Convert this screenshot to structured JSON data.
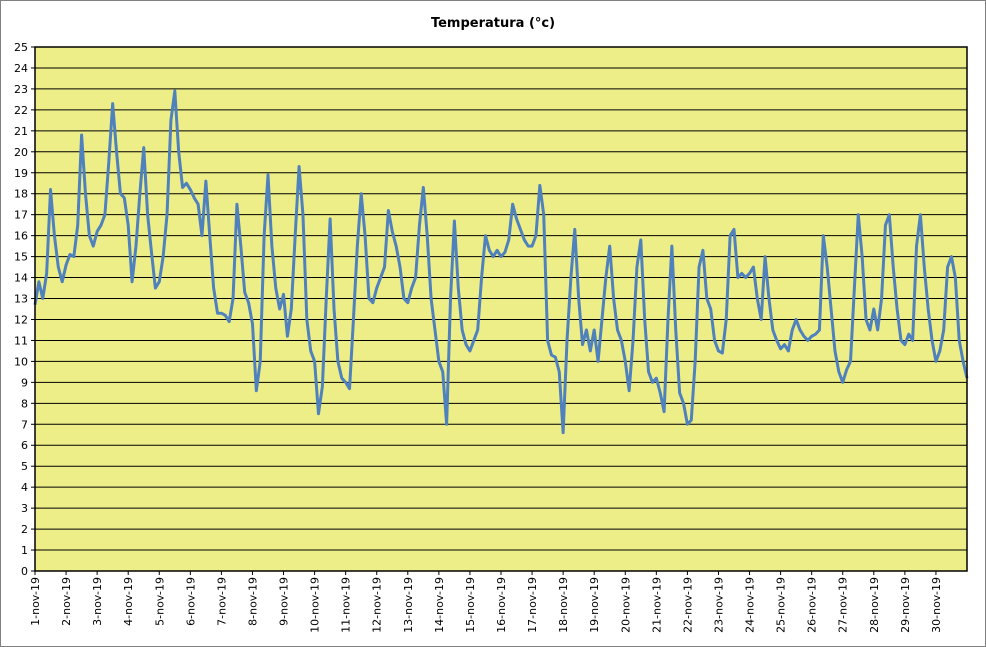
{
  "chart_data": {
    "type": "line",
    "title": "Temperatura (°c)",
    "xlabel": "",
    "ylabel": "",
    "ylim": [
      0,
      25
    ],
    "y_ticks": [
      0,
      1,
      2,
      3,
      4,
      5,
      6,
      7,
      8,
      9,
      10,
      11,
      12,
      13,
      14,
      15,
      16,
      17,
      18,
      19,
      20,
      21,
      22,
      23,
      24,
      25
    ],
    "x_ticks": [
      "1-nov-19",
      "2-nov-19",
      "3-nov-19",
      "4-nov-19",
      "5-nov-19",
      "6-nov-19",
      "7-nov-19",
      "8-nov-19",
      "9-nov-19",
      "10-nov-19",
      "11-nov-19",
      "12-nov-19",
      "13-nov-19",
      "14-nov-19",
      "15-nov-19",
      "16-nov-19",
      "17-nov-19",
      "18-nov-19",
      "19-nov-19",
      "20-nov-19",
      "21-nov-19",
      "22-nov-19",
      "23-nov-19",
      "24-nov-19",
      "25-nov-19",
      "26-nov-19",
      "27-nov-19",
      "28-nov-19",
      "29-nov-19",
      "30-nov-19"
    ],
    "xlim": [
      "2019-11-01 00:00",
      "2019-12-01 00:00"
    ],
    "grid": true,
    "legend": "none",
    "colors": {
      "plot_bg": "#eeee88",
      "line": "#4f81bd",
      "grid": "#000000"
    },
    "series": [
      {
        "x": [
          "2019-11-01 00:00",
          "2019-11-01 03:00",
          "2019-11-01 06:00",
          "2019-11-01 09:00",
          "2019-11-01 12:00",
          "2019-11-01 15:00",
          "2019-11-01 18:00",
          "2019-11-01 21:00",
          "2019-11-02 00:00",
          "2019-11-02 03:00",
          "2019-11-02 06:00",
          "2019-11-02 09:00",
          "2019-11-02 12:00",
          "2019-11-02 15:00",
          "2019-11-02 18:00",
          "2019-11-02 21:00",
          "2019-11-03 00:00",
          "2019-11-03 03:00",
          "2019-11-03 06:00",
          "2019-11-03 09:00",
          "2019-11-03 12:00",
          "2019-11-03 15:00",
          "2019-11-03 18:00",
          "2019-11-03 21:00",
          "2019-11-04 00:00",
          "2019-11-04 03:00",
          "2019-11-04 06:00",
          "2019-11-04 09:00",
          "2019-11-04 12:00",
          "2019-11-04 15:00",
          "2019-11-04 18:00",
          "2019-11-04 21:00",
          "2019-11-05 00:00",
          "2019-11-05 03:00",
          "2019-11-05 06:00",
          "2019-11-05 09:00",
          "2019-11-05 12:00",
          "2019-11-05 15:00",
          "2019-11-05 18:00",
          "2019-11-05 21:00",
          "2019-11-06 00:00",
          "2019-11-06 03:00",
          "2019-11-06 06:00",
          "2019-11-06 09:00",
          "2019-11-06 12:00",
          "2019-11-06 15:00",
          "2019-11-06 18:00",
          "2019-11-06 21:00",
          "2019-11-07 00:00",
          "2019-11-07 03:00",
          "2019-11-07 06:00",
          "2019-11-07 09:00",
          "2019-11-07 12:00",
          "2019-11-07 15:00",
          "2019-11-07 18:00",
          "2019-11-07 21:00",
          "2019-11-08 00:00",
          "2019-11-08 03:00",
          "2019-11-08 06:00",
          "2019-11-08 09:00",
          "2019-11-08 12:00",
          "2019-11-08 15:00",
          "2019-11-08 18:00",
          "2019-11-08 21:00",
          "2019-11-09 00:00",
          "2019-11-09 03:00",
          "2019-11-09 06:00",
          "2019-11-09 09:00",
          "2019-11-09 12:00",
          "2019-11-09 15:00",
          "2019-11-09 18:00",
          "2019-11-09 21:00",
          "2019-11-10 00:00",
          "2019-11-10 03:00",
          "2019-11-10 06:00",
          "2019-11-10 09:00",
          "2019-11-10 12:00",
          "2019-11-10 15:00",
          "2019-11-10 18:00",
          "2019-11-10 21:00",
          "2019-11-11 00:00",
          "2019-11-11 03:00",
          "2019-11-11 06:00",
          "2019-11-11 09:00",
          "2019-11-11 12:00",
          "2019-11-11 15:00",
          "2019-11-11 18:00",
          "2019-11-11 21:00",
          "2019-11-12 00:00",
          "2019-11-12 03:00",
          "2019-11-12 06:00",
          "2019-11-12 09:00",
          "2019-11-12 12:00",
          "2019-11-12 15:00",
          "2019-11-12 18:00",
          "2019-11-12 21:00",
          "2019-11-13 00:00",
          "2019-11-13 03:00",
          "2019-11-13 06:00",
          "2019-11-13 09:00",
          "2019-11-13 12:00",
          "2019-11-13 15:00",
          "2019-11-13 18:00",
          "2019-11-13 21:00",
          "2019-11-14 00:00",
          "2019-11-14 03:00",
          "2019-11-14 06:00",
          "2019-11-14 09:00",
          "2019-11-14 12:00",
          "2019-11-14 15:00",
          "2019-11-14 18:00",
          "2019-11-14 21:00",
          "2019-11-15 00:00",
          "2019-11-15 03:00",
          "2019-11-15 06:00",
          "2019-11-15 09:00",
          "2019-11-15 12:00",
          "2019-11-15 15:00",
          "2019-11-15 18:00",
          "2019-11-15 21:00",
          "2019-11-16 00:00",
          "2019-11-16 03:00",
          "2019-11-16 06:00",
          "2019-11-16 09:00",
          "2019-11-16 12:00",
          "2019-11-16 15:00",
          "2019-11-16 18:00",
          "2019-11-16 21:00",
          "2019-11-17 00:00",
          "2019-11-17 03:00",
          "2019-11-17 06:00",
          "2019-11-17 09:00",
          "2019-11-17 12:00",
          "2019-11-17 15:00",
          "2019-11-17 18:00",
          "2019-11-17 21:00",
          "2019-11-18 00:00",
          "2019-11-18 03:00",
          "2019-11-18 06:00",
          "2019-11-18 09:00",
          "2019-11-18 12:00",
          "2019-11-18 15:00",
          "2019-11-18 18:00",
          "2019-11-18 21:00",
          "2019-11-19 00:00",
          "2019-11-19 03:00",
          "2019-11-19 06:00",
          "2019-11-19 09:00",
          "2019-11-19 12:00",
          "2019-11-19 15:00",
          "2019-11-19 18:00",
          "2019-11-19 21:00",
          "2019-11-20 00:00",
          "2019-11-20 03:00",
          "2019-11-20 06:00",
          "2019-11-20 09:00",
          "2019-11-20 12:00",
          "2019-11-20 15:00",
          "2019-11-20 18:00",
          "2019-11-20 21:00",
          "2019-11-21 00:00",
          "2019-11-21 03:00",
          "2019-11-21 06:00",
          "2019-11-21 09:00",
          "2019-11-21 12:00",
          "2019-11-21 15:00",
          "2019-11-21 18:00",
          "2019-11-21 21:00",
          "2019-11-22 00:00",
          "2019-11-22 03:00",
          "2019-11-22 06:00",
          "2019-11-22 09:00",
          "2019-11-22 12:00",
          "2019-11-22 15:00",
          "2019-11-22 18:00",
          "2019-11-22 21:00",
          "2019-11-23 00:00",
          "2019-11-23 03:00",
          "2019-11-23 06:00",
          "2019-11-23 09:00",
          "2019-11-23 12:00",
          "2019-11-23 15:00",
          "2019-11-23 18:00",
          "2019-11-23 21:00",
          "2019-11-24 00:00",
          "2019-11-24 03:00",
          "2019-11-24 06:00",
          "2019-11-24 09:00",
          "2019-11-24 12:00",
          "2019-11-24 15:00",
          "2019-11-24 18:00",
          "2019-11-24 21:00",
          "2019-11-25 00:00",
          "2019-11-25 03:00",
          "2019-11-25 06:00",
          "2019-11-25 09:00",
          "2019-11-25 12:00",
          "2019-11-25 15:00",
          "2019-11-25 18:00",
          "2019-11-25 21:00",
          "2019-11-26 00:00",
          "2019-11-26 03:00",
          "2019-11-26 06:00",
          "2019-11-26 09:00",
          "2019-11-26 12:00",
          "2019-11-26 15:00",
          "2019-11-26 18:00",
          "2019-11-26 21:00",
          "2019-11-27 00:00",
          "2019-11-27 03:00",
          "2019-11-27 06:00",
          "2019-11-27 09:00",
          "2019-11-27 12:00",
          "2019-11-27 15:00",
          "2019-11-27 18:00",
          "2019-11-27 21:00",
          "2019-11-28 00:00",
          "2019-11-28 03:00",
          "2019-11-28 06:00",
          "2019-11-28 09:00",
          "2019-11-28 12:00",
          "2019-11-28 15:00",
          "2019-11-28 18:00",
          "2019-11-28 21:00",
          "2019-11-29 00:00",
          "2019-11-29 03:00",
          "2019-11-29 06:00",
          "2019-11-29 09:00",
          "2019-11-29 12:00",
          "2019-11-29 15:00",
          "2019-11-29 18:00",
          "2019-11-29 21:00",
          "2019-11-30 00:00",
          "2019-11-30 03:00",
          "2019-11-30 06:00",
          "2019-11-30 09:00",
          "2019-11-30 12:00",
          "2019-11-30 15:00",
          "2019-11-30 18:00",
          "2019-11-30 21:00",
          "2019-12-01 00:00"
        ],
        "y": [
          12.7,
          13.8,
          13.0,
          14.2,
          18.2,
          16.0,
          14.5,
          13.8,
          14.6,
          15.1,
          15.0,
          16.5,
          20.8,
          18.0,
          16.0,
          15.5,
          16.2,
          16.5,
          17.0,
          19.5,
          22.3,
          20.0,
          18.0,
          17.8,
          16.5,
          13.8,
          15.5,
          18.0,
          20.2,
          17.0,
          15.2,
          13.5,
          13.8,
          15.0,
          17.0,
          21.5,
          22.9,
          20.0,
          18.3,
          18.5,
          18.2,
          17.8,
          17.5,
          16.0,
          18.6,
          16.0,
          13.5,
          12.3,
          12.3,
          12.2,
          11.9,
          13.0,
          17.5,
          15.5,
          13.3,
          12.8,
          11.8,
          8.6,
          10.0,
          16.0,
          18.9,
          15.5,
          13.5,
          12.5,
          13.2,
          11.2,
          12.5,
          16.0,
          19.3,
          17.0,
          12.0,
          10.5,
          10.0,
          7.5,
          8.8,
          13.0,
          16.8,
          12.5,
          10.0,
          9.2,
          9.0,
          8.7,
          12.0,
          15.5,
          18.0,
          16.0,
          13.0,
          12.8,
          13.5,
          14.0,
          14.5,
          17.2,
          16.2,
          15.5,
          14.5,
          13.0,
          12.8,
          13.5,
          14.0,
          16.5,
          18.3,
          16.0,
          13.0,
          11.5,
          10.0,
          9.5,
          7.0,
          13.0,
          16.7,
          13.5,
          11.5,
          10.8,
          10.5,
          11.0,
          11.5,
          14.0,
          16.0,
          15.3,
          15.0,
          15.3,
          15.0,
          15.2,
          15.8,
          17.5,
          16.8,
          16.3,
          15.8,
          15.5,
          15.5,
          16.0,
          18.4,
          17.0,
          11.0,
          10.3,
          10.2,
          9.5,
          6.6,
          11.0,
          14.0,
          16.3,
          13.0,
          10.8,
          11.5,
          10.5,
          11.5,
          10.0,
          12.0,
          14.0,
          15.5,
          13.0,
          11.5,
          11.0,
          10.0,
          8.6,
          11.0,
          14.5,
          15.8,
          12.0,
          9.5,
          9.0,
          9.2,
          8.5,
          7.6,
          12.0,
          15.5,
          11.5,
          8.5,
          8.0,
          7.0,
          7.2,
          10.0,
          14.5,
          15.3,
          13.0,
          12.5,
          11.0,
          10.5,
          10.4,
          12.0,
          16.0,
          16.3,
          14.0,
          14.2,
          14.0,
          14.2,
          14.5,
          13.0,
          12.0,
          15.0,
          13.0,
          11.5,
          11.0,
          10.6,
          10.8,
          10.5,
          11.5,
          12.0,
          11.5,
          11.2,
          11.0,
          11.2,
          11.3,
          11.5,
          16.0,
          14.5,
          12.5,
          10.5,
          9.5,
          9.0,
          9.6,
          10.0,
          13.5,
          17.0,
          15.0,
          12.0,
          11.5,
          12.5,
          11.5,
          13.0,
          16.5,
          17.0,
          14.5,
          12.5,
          11.0,
          10.8,
          11.3,
          11.0,
          15.5,
          17.0,
          14.5,
          12.5,
          11.0,
          10.0,
          10.5,
          11.5,
          14.5,
          15.0,
          14.0,
          11.0,
          10.0,
          9.2
        ]
      }
    ]
  }
}
